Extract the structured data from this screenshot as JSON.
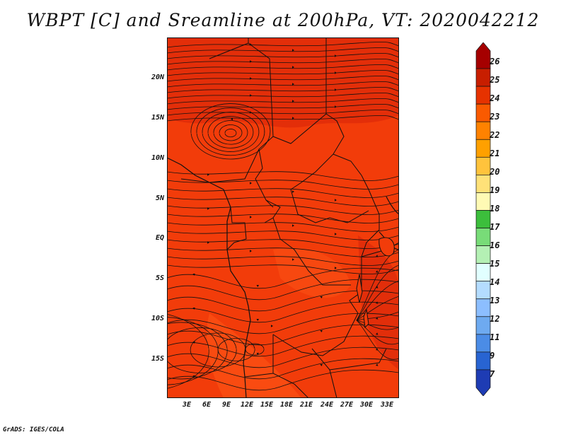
{
  "title": "WBPT [C] and Sreamline at 200hPa, VT: 2020042212",
  "footer": "GrADS: IGES/COLA",
  "map": {
    "variable": "WBPT [C]",
    "overlay": "Streamline",
    "level": "200hPa",
    "valid_time": "2020042212",
    "fill_color": "#f23c0a",
    "dark_fill_color": "#d8200a",
    "lat_labels": [
      "20N",
      "15N",
      "10N",
      "5N",
      "EQ",
      "5S",
      "10S",
      "15S"
    ],
    "lon_labels": [
      "3E",
      "6E",
      "9E",
      "12E",
      "15E",
      "18E",
      "21E",
      "24E",
      "27E",
      "30E",
      "33E"
    ]
  },
  "colorbar": {
    "labels": [
      "26",
      "25",
      "24",
      "23",
      "22",
      "21",
      "20",
      "19",
      "18",
      "17",
      "16",
      "15",
      "14",
      "13",
      "12",
      "11",
      "9",
      "7"
    ],
    "colors": [
      "#a50000",
      "#c81e00",
      "#e63200",
      "#fa5a00",
      "#ff8200",
      "#ffa000",
      "#ffc33c",
      "#ffe178",
      "#fffab4",
      "#3cbe3c",
      "#78dc78",
      "#b4f0b4",
      "#e1ffff",
      "#b4dcff",
      "#8cbeff",
      "#6eaaf0",
      "#4b8ce6",
      "#2864d2",
      "#1e3cb4"
    ]
  }
}
